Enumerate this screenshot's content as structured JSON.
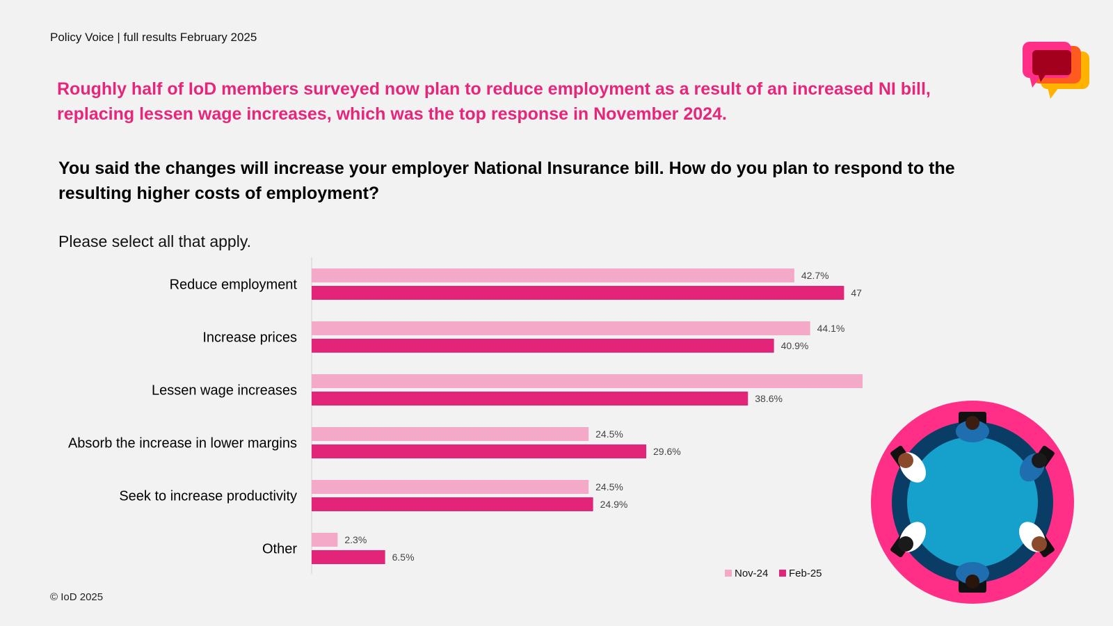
{
  "header": {
    "source": "Policy Voice | full results February 2025"
  },
  "headline": "Roughly half of IoD members surveyed now plan to reduce employment as a result of an increased NI bill, replacing lessen wage increases, which was the top response in November 2024.",
  "question": "You said the changes will increase your employer National Insurance bill. How do you plan to respond to the resulting higher costs of employment?",
  "instruction": "Please select all that apply.",
  "footer": {
    "copyright": "© IoD 2025"
  },
  "colors": {
    "accent": "#e5267a",
    "nov": "#f4a9c9",
    "feb": "#e3257a",
    "illustration_ring": "#ff2f87",
    "table": "#16a0cc",
    "table_rim": "#0a3d66"
  },
  "chart_data": {
    "type": "bar",
    "orientation": "horizontal",
    "categories": [
      "Reduce employment",
      "Increase prices",
      "Lessen wage increases",
      "Absorb the increase in lower margins",
      "Seek to increase productivity",
      "Other"
    ],
    "series": [
      {
        "name": "Nov-24",
        "values": [
          42.7,
          44.1,
          50.1,
          24.5,
          24.5,
          2.3
        ],
        "color": "#f4a9c9"
      },
      {
        "name": "Feb-25",
        "values": [
          47.1,
          40.9,
          38.6,
          29.6,
          24.9,
          6.5
        ],
        "color": "#e3257a"
      }
    ],
    "value_suffix": "%",
    "xlim": [
      0,
      55
    ],
    "grid": false,
    "legend_position": "bottom-right"
  }
}
